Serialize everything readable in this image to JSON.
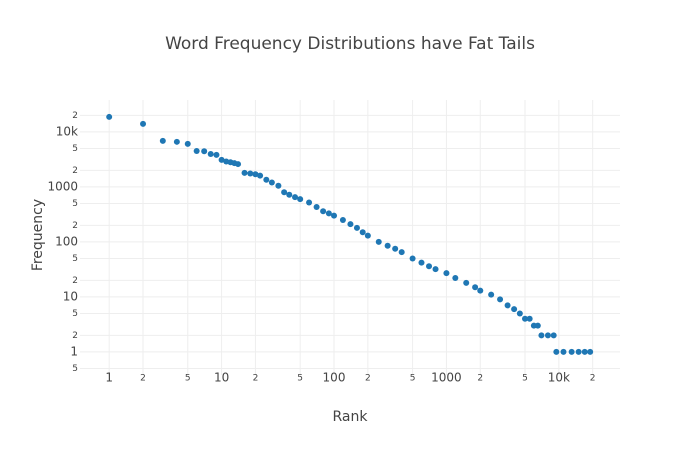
{
  "chart_data": {
    "type": "scatter",
    "title": "Word Frequency Distributions have Fat Tails",
    "x_label": "Rank",
    "y_label": "Frequency",
    "x_scale": "log",
    "y_scale": "log",
    "grid": true,
    "color": "#1f77b4",
    "xlim": [
      0.55,
      35000
    ],
    "ylim": [
      0.38,
      38000
    ],
    "xticks": [
      1,
      2,
      5,
      10,
      {
        "value": 20,
        "label": "2"
      },
      {
        "value": 50,
        "label": "5"
      },
      100,
      {
        "value": 200,
        "label": "2"
      },
      {
        "value": 500,
        "label": "5"
      },
      1000,
      {
        "value": 2000,
        "label": "2"
      },
      {
        "value": 5000,
        "label": "5"
      },
      {
        "value": 10000,
        "label": "10k"
      },
      {
        "value": 20000,
        "label": "2"
      }
    ],
    "yticks": [
      {
        "value": 0.5,
        "label": "5"
      },
      1,
      2,
      5,
      10,
      {
        "value": 20,
        "label": "2"
      },
      {
        "value": 50,
        "label": "5"
      },
      100,
      {
        "value": 200,
        "label": "2"
      },
      {
        "value": 500,
        "label": "5"
      },
      1000,
      {
        "value": 2000,
        "label": "2"
      },
      {
        "value": 5000,
        "label": "5"
      },
      {
        "value": 10000,
        "label": "10k"
      },
      {
        "value": 20000,
        "label": "2"
      }
    ],
    "x": [
      1,
      2,
      3,
      4,
      5,
      6,
      7,
      8,
      9,
      10,
      11,
      12,
      13,
      14,
      16,
      18,
      20,
      22,
      25,
      28,
      32,
      36,
      40,
      45,
      50,
      60,
      70,
      80,
      90,
      100,
      120,
      140,
      160,
      180,
      200,
      250,
      300,
      350,
      400,
      500,
      600,
      700,
      800,
      1000,
      1200,
      1500,
      1800,
      2000,
      2500,
      3000,
      3500,
      4000,
      4500,
      5000,
      5500,
      6000,
      6500,
      7000,
      8000,
      9000,
      9500,
      11000,
      13000,
      15000,
      17000,
      19000
    ],
    "values": [
      18700,
      14000,
      6850,
      6600,
      6050,
      4500,
      4450,
      3970,
      3820,
      3100,
      2900,
      2800,
      2700,
      2600,
      1800,
      1750,
      1700,
      1600,
      1350,
      1200,
      1050,
      800,
      720,
      650,
      600,
      520,
      430,
      360,
      330,
      300,
      250,
      210,
      180,
      150,
      130,
      100,
      85,
      75,
      65,
      50,
      42,
      36,
      32,
      27,
      22,
      18,
      15,
      13,
      11,
      9,
      7,
      6,
      5,
      4,
      4,
      3,
      3,
      2,
      2,
      2,
      1,
      1,
      1,
      1,
      1,
      1
    ]
  }
}
